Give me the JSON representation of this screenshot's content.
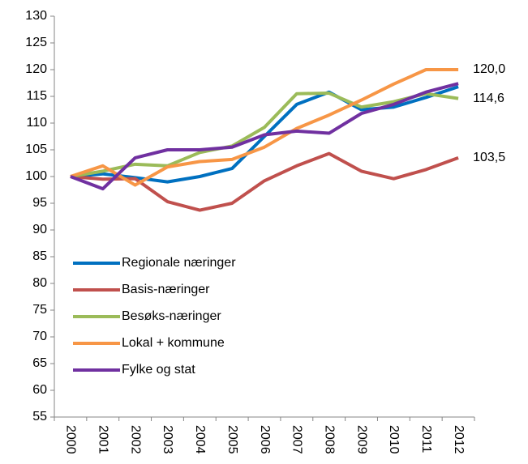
{
  "chart_data": {
    "type": "line",
    "categories": [
      "2000",
      "2001",
      "2002",
      "2003",
      "2004",
      "2005",
      "2006",
      "2007",
      "2008",
      "2009",
      "2010",
      "2011",
      "2012"
    ],
    "series": [
      {
        "name": "Regionale næringer",
        "color": "#0070c0",
        "values": [
          100,
          100.5,
          99.8,
          99,
          100,
          101.5,
          107.5,
          113.5,
          115.8,
          112.5,
          113,
          114.8,
          116.8
        ]
      },
      {
        "name": "Basis-næringer",
        "color": "#c0504d",
        "values": [
          100,
          99.5,
          99.6,
          95.3,
          93.7,
          95,
          99.2,
          102,
          104.3,
          101,
          99.6,
          101.3,
          103.5
        ],
        "value_labels": [
          null,
          null,
          null,
          null,
          null,
          null,
          null,
          null,
          null,
          null,
          null,
          null,
          "103,5"
        ]
      },
      {
        "name": "Besøks-næringer",
        "color": "#9bbb59",
        "values": [
          100,
          101,
          102.3,
          102,
          104.5,
          105.7,
          109.2,
          115.5,
          115.6,
          113,
          114,
          115.5,
          114.6
        ],
        "value_labels": [
          null,
          null,
          null,
          null,
          null,
          null,
          null,
          null,
          null,
          null,
          null,
          null,
          "114,6"
        ]
      },
      {
        "name": "Lokal + kommune",
        "color": "#f79646",
        "values": [
          100,
          102,
          98.4,
          101.8,
          102.8,
          103.2,
          105.5,
          109,
          111.5,
          114.3,
          117.3,
          120,
          120
        ],
        "value_labels": [
          null,
          null,
          null,
          null,
          null,
          null,
          null,
          null,
          null,
          null,
          null,
          null,
          "120,0"
        ]
      },
      {
        "name": "Fylke og stat",
        "color": "#7030a0",
        "values": [
          100,
          97.7,
          103.5,
          105,
          105,
          105.5,
          107.8,
          108.5,
          108.1,
          111.8,
          113.5,
          115.8,
          117.4
        ]
      }
    ],
    "ylim": [
      55,
      130
    ],
    "yticks": [
      55,
      60,
      65,
      70,
      75,
      80,
      85,
      90,
      95,
      100,
      105,
      110,
      115,
      120,
      125,
      130
    ],
    "grid": false,
    "legend": "lower left"
  }
}
